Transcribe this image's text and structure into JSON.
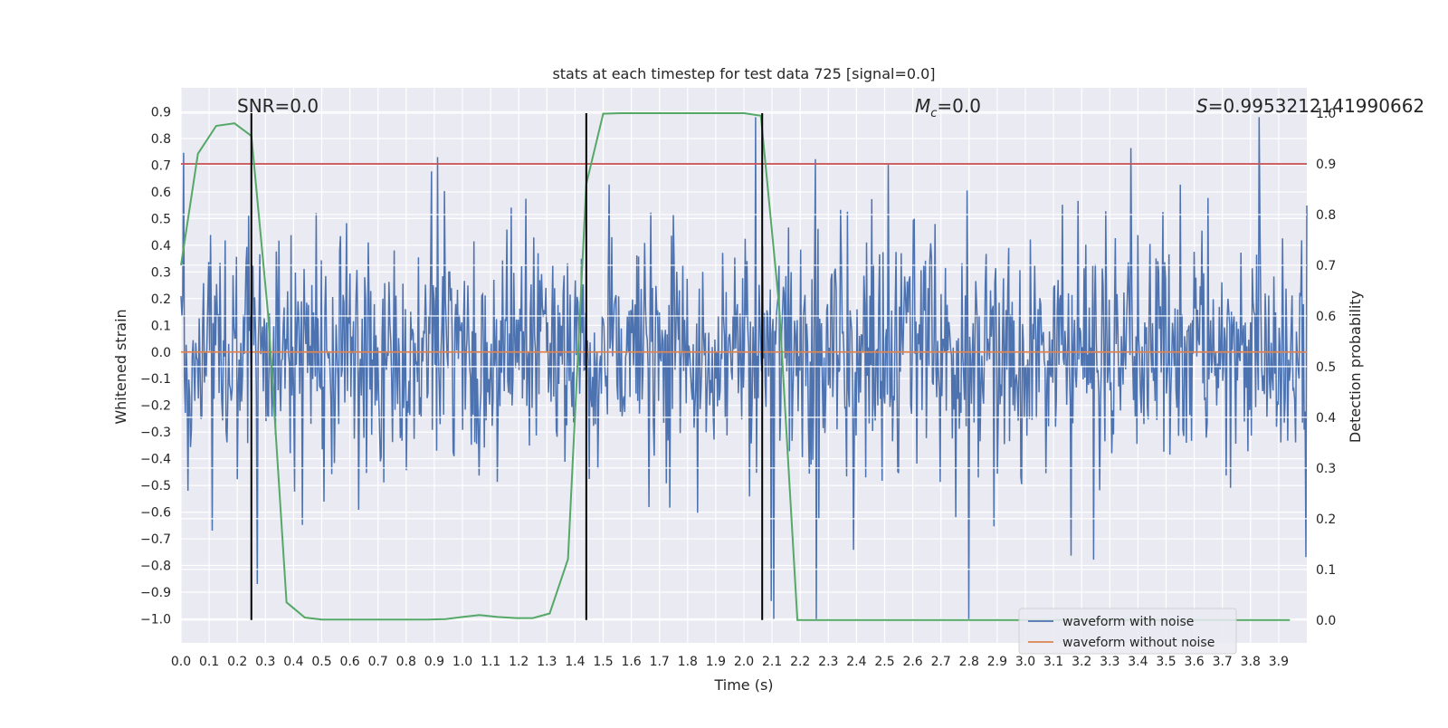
{
  "chart_data": {
    "type": "line",
    "title": "stats at each timestep for test data 725 [signal=0.0]",
    "xlabel": "Time (s)",
    "ylabel": "Whitened strain",
    "y2label": "Detection probability",
    "xlim": [
      0.0,
      4.0
    ],
    "ylim": [
      -1.09,
      0.99
    ],
    "y2lim": [
      -0.045,
      1.05
    ],
    "x_ticks": [
      "0.0",
      "0.1",
      "0.2",
      "0.3",
      "0.4",
      "0.5",
      "0.6",
      "0.7",
      "0.8",
      "0.9",
      "1.0",
      "1.1",
      "1.2",
      "1.3",
      "1.4",
      "1.5",
      "1.6",
      "1.7",
      "1.8",
      "1.9",
      "2.0",
      "2.1",
      "2.2",
      "2.3",
      "2.4",
      "2.5",
      "2.6",
      "2.7",
      "2.8",
      "2.9",
      "3.0",
      "3.1",
      "3.2",
      "3.3",
      "3.4",
      "3.5",
      "3.6",
      "3.7",
      "3.8",
      "3.9"
    ],
    "y_ticks": [
      "0.9",
      "0.8",
      "0.7",
      "0.6",
      "0.5",
      "0.4",
      "0.3",
      "0.2",
      "0.1",
      "0.0",
      "-0.1",
      "-0.2",
      "-0.3",
      "-0.4",
      "-0.5",
      "-0.6",
      "-0.7",
      "-0.8",
      "-0.9",
      "-1.0"
    ],
    "y2_ticks": [
      "1.0",
      "0.9",
      "0.8",
      "0.7",
      "0.6",
      "0.5",
      "0.4",
      "0.3",
      "0.2",
      "0.1",
      "0.0"
    ],
    "grid": true,
    "annotations": {
      "snr": "SNR=0.0",
      "mc_symbol": "M",
      "mc_sub": "c",
      "mc_value": "=0.0",
      "s_symbol": "S",
      "s_value": "=0.9953212141990662"
    },
    "threshold": {
      "value": 0.9,
      "axis": "y2",
      "color": "#c44e52"
    },
    "vertical_lines": [
      0.25,
      1.44,
      2.065
    ],
    "series": [
      {
        "name": "waveform with noise",
        "color": "#4c72b0",
        "x_range": [
          0.0,
          4.0
        ],
        "min": -1.0,
        "max": 0.88,
        "note": "dense noise trace sampled across full time range"
      },
      {
        "name": "waveform without noise",
        "color": "#dd8452",
        "x": [
          0.0,
          4.0
        ],
        "y": [
          0.0,
          0.0
        ]
      },
      {
        "name": "detection probability",
        "color": "#55a868",
        "axis": "y2",
        "x": [
          0.0,
          0.06,
          0.125,
          0.19,
          0.25,
          0.31,
          0.375,
          0.44,
          0.5,
          0.56,
          0.625,
          0.69,
          0.75,
          0.81,
          0.875,
          0.94,
          1.0,
          1.06,
          1.125,
          1.19,
          1.25,
          1.31,
          1.375,
          1.44,
          1.5,
          1.56,
          1.625,
          1.69,
          1.75,
          1.81,
          1.875,
          1.94,
          2.0,
          2.06,
          2.125,
          2.19,
          2.25,
          2.5,
          3.0,
          3.5,
          3.94
        ],
        "y": [
          0.7,
          0.92,
          0.975,
          0.98,
          0.955,
          0.6,
          0.035,
          0.005,
          0.001,
          0.001,
          0.001,
          0.001,
          0.001,
          0.001,
          0.001,
          0.002,
          0.006,
          0.01,
          0.006,
          0.004,
          0.004,
          0.013,
          0.12,
          0.86,
          0.999,
          1.0,
          1.0,
          1.0,
          1.0,
          1.0,
          1.0,
          1.0,
          1.0,
          0.995,
          0.62,
          0.0,
          0.0,
          0.0,
          0.0,
          0.0,
          0.0
        ]
      }
    ],
    "legend": {
      "position": "lower-right",
      "entries": [
        {
          "label": "waveform with noise",
          "color": "#4c72b0"
        },
        {
          "label": "waveform without noise",
          "color": "#dd8452"
        }
      ]
    }
  }
}
